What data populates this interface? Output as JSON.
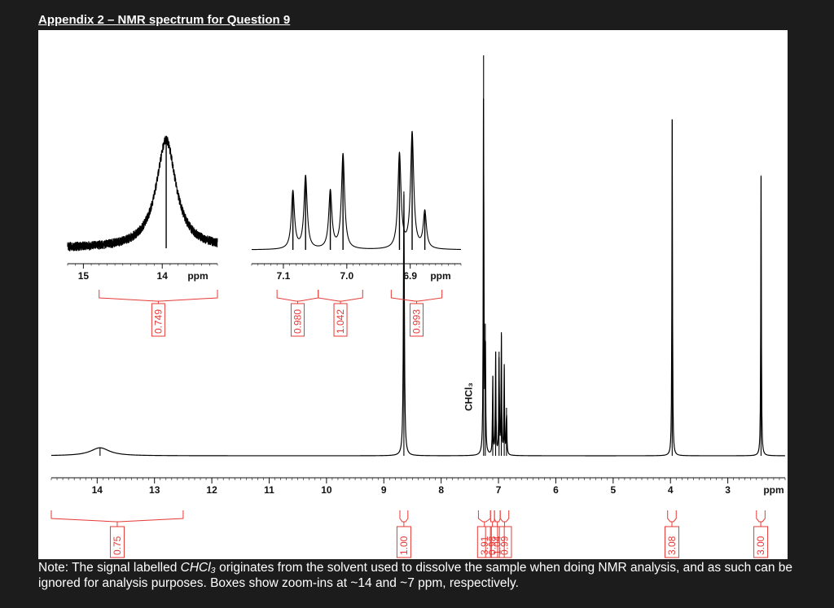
{
  "page": {
    "title": "Appendix 2 – NMR spectrum for Question 9",
    "note_prefix": "Note: The signal labelled ",
    "note_solvent": "CHCl₃",
    "note_suffix": " originates from the solvent used to dissolve the sample when doing NMR analysis, and as such can be ignored for analysis purposes. Boxes show zoom-ins at ~14 and ~7 ppm, respectively."
  },
  "colors": {
    "spectrum": "#000000",
    "integration": "#e53935",
    "background": "#1c1c1c",
    "panel": "#ffffff"
  },
  "chart_data": [
    {
      "type": "line",
      "x_reversed": true,
      "xlim": [
        14.8,
        2.0
      ],
      "x_ticks": [
        "14",
        "13",
        "12",
        "11",
        "10",
        "9",
        "8",
        "7",
        "6",
        "5",
        "4",
        "3"
      ],
      "x_unit": "ppm",
      "peaks": [
        {
          "ppm": 13.95,
          "height": 0.02,
          "width": 0.4
        },
        {
          "ppm": 8.65,
          "height": 0.66,
          "width": 0.02
        },
        {
          "ppm": 7.26,
          "height": 1.0,
          "width": 0.012
        },
        {
          "ppm": 7.23,
          "height": 0.33,
          "width": 0.012
        },
        {
          "ppm": 7.1,
          "height": 0.2,
          "width": 0.012
        },
        {
          "ppm": 7.05,
          "height": 0.26,
          "width": 0.012
        },
        {
          "ppm": 6.99,
          "height": 0.26,
          "width": 0.012
        },
        {
          "ppm": 6.95,
          "height": 0.3,
          "width": 0.012
        },
        {
          "ppm": 6.9,
          "height": 0.22,
          "width": 0.012
        },
        {
          "ppm": 6.86,
          "height": 0.12,
          "width": 0.012
        },
        {
          "ppm": 3.97,
          "height": 0.84,
          "width": 0.012
        },
        {
          "ppm": 2.42,
          "height": 0.7,
          "width": 0.012
        }
      ],
      "solvent_label": "CHCl₃",
      "integrals": [
        {
          "from": 14.8,
          "to": 12.5,
          "value": "0.75"
        },
        {
          "from": 8.72,
          "to": 8.58,
          "value": "1.00"
        },
        {
          "from": 7.35,
          "to": 7.14,
          "value": "3.91"
        },
        {
          "from": 7.14,
          "to": 7.07,
          "value": "0.98"
        },
        {
          "from": 7.07,
          "to": 6.97,
          "value": "1.04"
        },
        {
          "from": 6.97,
          "to": 6.82,
          "value": "0.99"
        },
        {
          "from": 4.05,
          "to": 3.9,
          "value": "3.08"
        },
        {
          "from": 2.5,
          "to": 2.35,
          "value": "3.00"
        }
      ]
    },
    {
      "type": "line",
      "x_reversed": true,
      "xlim": [
        15.2,
        13.3
      ],
      "x_ticks": [
        "15",
        "14"
      ],
      "x_unit": "ppm",
      "peaks": [
        {
          "ppm": 13.95,
          "height": 1.0,
          "width": 0.3
        }
      ],
      "integrals": [
        {
          "from": 14.8,
          "to": 13.3,
          "value": "0.749"
        }
      ]
    },
    {
      "type": "line",
      "x_reversed": true,
      "xlim": [
        7.15,
        6.82
      ],
      "x_ticks": [
        "7.1",
        "7.0",
        "6.9"
      ],
      "x_unit": "ppm",
      "peaks": [
        {
          "ppm": 7.085,
          "height": 0.5,
          "width": 0.006
        },
        {
          "ppm": 7.065,
          "height": 0.63,
          "width": 0.006
        },
        {
          "ppm": 7.026,
          "height": 0.5,
          "width": 0.006
        },
        {
          "ppm": 7.006,
          "height": 0.82,
          "width": 0.006
        },
        {
          "ppm": 6.917,
          "height": 0.82,
          "width": 0.006
        },
        {
          "ppm": 6.897,
          "height": 1.0,
          "width": 0.006
        },
        {
          "ppm": 6.877,
          "height": 0.32,
          "width": 0.006
        }
      ],
      "integrals": [
        {
          "from": 7.11,
          "to": 7.045,
          "value": "0.980"
        },
        {
          "from": 7.045,
          "to": 6.975,
          "value": "1.042"
        },
        {
          "from": 6.93,
          "to": 6.85,
          "value": "0.993"
        }
      ]
    }
  ]
}
